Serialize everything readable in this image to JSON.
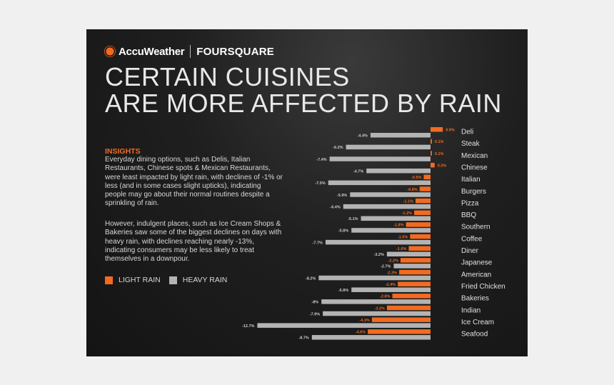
{
  "brand": {
    "accuweather": "AccuWeather",
    "foursquare": "FOURSQUARE"
  },
  "title": {
    "line1": "CERTAIN CUISINES",
    "line2": "ARE MORE AFFECTED BY RAIN"
  },
  "insights": {
    "heading": "INSIGHTS",
    "paragraph1": "Everyday dining options, such as Delis, Italian Restaurants, Chinese spots & Mexican Restaurants, were least impacted by light rain, with declines of -1% or less (and in some cases slight upticks), indicating people may go about their normal routines despite a sprinkling of rain.",
    "paragraph2": "However, indulgent places, such as Ice Cream Shops & Bakeries saw some of the biggest declines on days with heavy rain, with declines reaching nearly -13%, indicating consumers may be less likely to treat themselves in a downpour."
  },
  "colors": {
    "light_rain": "#f26b21",
    "heavy_rain": "#b3b3b3",
    "background": "#1a1a1a"
  },
  "chart_data": {
    "type": "bar",
    "orientation": "horizontal",
    "unit": "%",
    "categories": [
      "Deli",
      "Steak",
      "Mexican",
      "Chinese",
      "Italian",
      "Burgers",
      "Pizza",
      "BBQ",
      "Southern",
      "Coffee",
      "Diner",
      "Japanese",
      "American",
      "Fried Chicken",
      "Bakeries",
      "Indian",
      "Ice Cream",
      "Seafood"
    ],
    "series": [
      {
        "name": "LIGHT RAIN",
        "values": [
          0.9,
          0.1,
          0.1,
          0.3,
          -0.5,
          -0.8,
          -1.1,
          -1.2,
          -1.8,
          -1.5,
          -1.6,
          -2.2,
          -2.3,
          -2.4,
          -2.8,
          -3.2,
          -4.3,
          -4.6
        ]
      },
      {
        "name": "HEAVY RAIN",
        "values": [
          -4.4,
          -6.2,
          -7.4,
          -4.7,
          -7.5,
          -5.9,
          -6.4,
          -5.1,
          -5.8,
          -7.7,
          -3.2,
          -2.7,
          -8.2,
          -5.8,
          -8,
          -7.9,
          -12.7,
          -8.7
        ]
      }
    ],
    "legend": "bottom-left",
    "grid": false
  }
}
